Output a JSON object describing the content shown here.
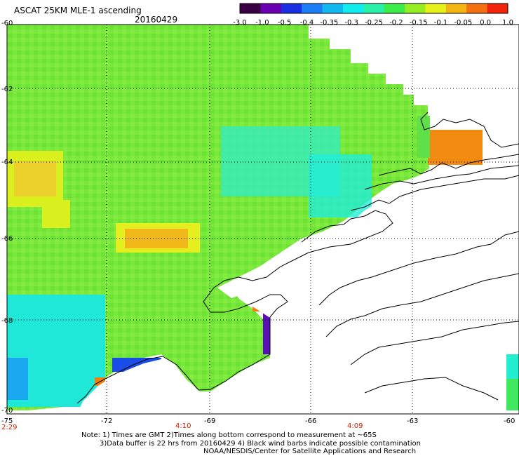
{
  "header": {
    "title": "ASCAT 25KM MLE-1 ascending",
    "date": "20160429"
  },
  "colorbar": {
    "tick_labels": [
      "-3.0",
      "-1.0",
      "-0.5",
      "-0.4",
      "-0.35",
      "-0.3",
      "-0.25",
      "-0.2",
      "-0.15",
      "-0.1",
      "-0.05",
      "0.0",
      "1.0"
    ],
    "colors": [
      "#3a0044",
      "#6a00b0",
      "#1a2fe0",
      "#1b7ef5",
      "#13b8f0",
      "#12ecec",
      "#2af0a8",
      "#3cec48",
      "#95ee22",
      "#e6f01a",
      "#f4b414",
      "#f47010",
      "#f0240a"
    ]
  },
  "map": {
    "lat_labels": [
      "-60",
      "-62",
      "-64",
      "-66",
      "-68",
      "-70"
    ],
    "lon_labels": [
      "-75",
      "-72",
      "-69",
      "-66",
      "-63",
      "-60"
    ],
    "time_labels": [
      "2:29",
      "4:10",
      "4:09"
    ],
    "time_color": "#cc2200"
  },
  "notes": {
    "line1": "Note: 1) Times are GMT 2)Times along bottom correspond to measurement at ~65S",
    "line2": "3)Data buffer is 22 hrs from 20160429 4) Black wind barbs indicate possible contamination",
    "line3": "NOAA/NESDIS/Center for Satellite Applications and Research"
  }
}
